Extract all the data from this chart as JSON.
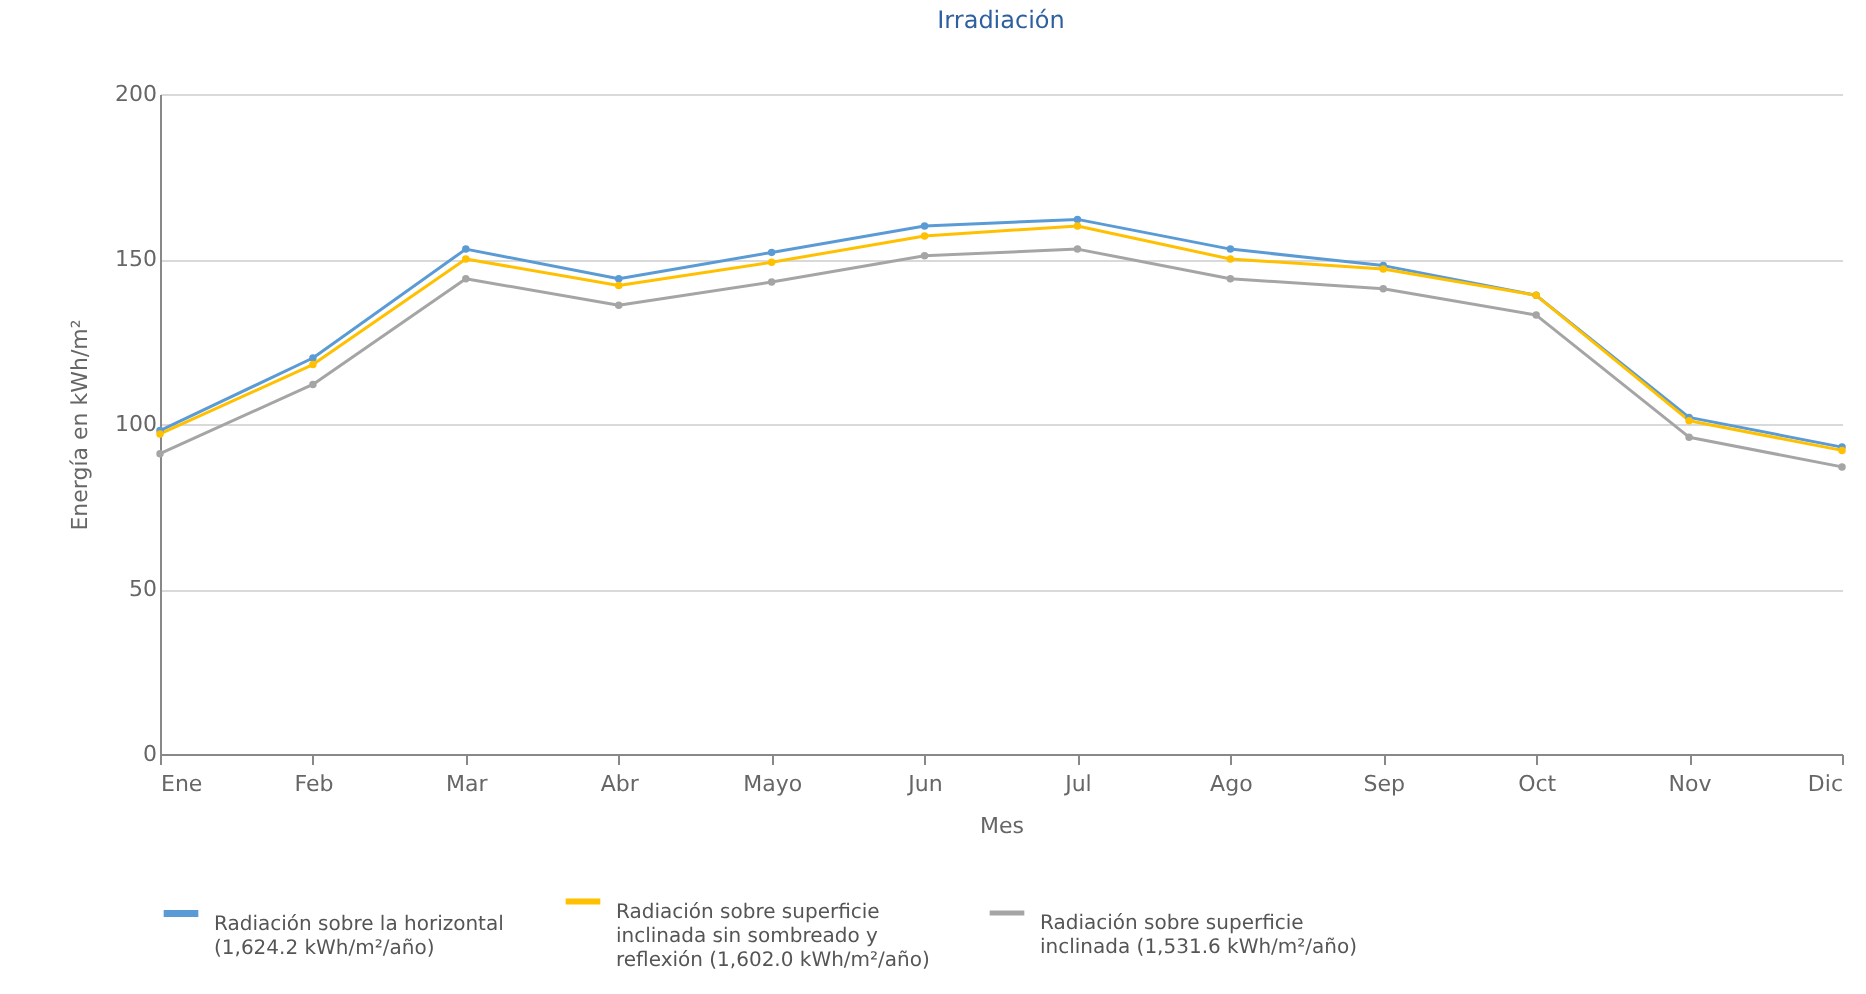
{
  "chart_data": {
    "type": "line",
    "title": "Irradiación",
    "xlabel": "Mes",
    "ylabel": "Energía en kWh/m²",
    "categories": [
      "Ene",
      "Feb",
      "Mar",
      "Abr",
      "Mayo",
      "Jun",
      "Jul",
      "Ago",
      "Sep",
      "Oct",
      "Nov",
      "Dic"
    ],
    "series": [
      {
        "name": "Radiación sobre la horizontal (1,624.2 kWh/m²/año)",
        "color": "#5b9bd5",
        "values": [
          98,
          120,
          153,
          144,
          152,
          160,
          162,
          153,
          148,
          139,
          102,
          93
        ]
      },
      {
        "name": "Radiación sobre superficie inclinada sin sombreado y reflexión (1,602.0 kWh/m²/año)",
        "color": "#ffc000",
        "values": [
          97,
          118,
          150,
          142,
          149,
          157,
          160,
          150,
          147,
          139,
          101,
          92
        ]
      },
      {
        "name": "Radiación sobre superficie inclinada (1,531.6 kWh/m²/año)",
        "color": "#a5a5a5",
        "values": [
          91,
          112,
          144,
          136,
          143,
          151,
          153,
          144,
          141,
          133,
          96,
          87
        ]
      }
    ],
    "ylim": [
      0,
      200
    ],
    "yticks": [
      0,
      50,
      100,
      150,
      200
    ],
    "grid": "y",
    "legend": "bottom",
    "marker": "circle"
  }
}
